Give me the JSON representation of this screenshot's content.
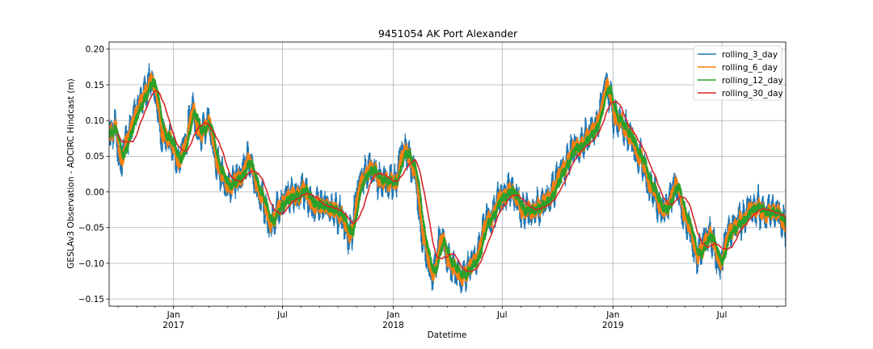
{
  "chart_data": {
    "type": "line",
    "title": "9451054 AK Port Alexander",
    "xlabel": "Datetime",
    "ylabel": "GESLAv3 Observation - ADCIRC Hindcast (m)",
    "xlim": [
      "2016-09-16",
      "2019-10-15"
    ],
    "ylim": [
      -0.16,
      0.21
    ],
    "yticks": [
      -0.15,
      -0.1,
      -0.05,
      0.0,
      0.05,
      0.1,
      0.15,
      0.2
    ],
    "ytick_labels": [
      "−0.15",
      "−0.10",
      "−0.05",
      "0.00",
      "0.05",
      "0.10",
      "0.15",
      "0.20"
    ],
    "xticks": [
      {
        "date": "2017-01-01",
        "label": "Jan",
        "sublabel": "2017"
      },
      {
        "date": "2017-07-01",
        "label": "Jul",
        "sublabel": ""
      },
      {
        "date": "2018-01-01",
        "label": "Jan",
        "sublabel": "2018"
      },
      {
        "date": "2018-07-01",
        "label": "Jul",
        "sublabel": ""
      },
      {
        "date": "2019-01-01",
        "label": "Jan",
        "sublabel": "2019"
      },
      {
        "date": "2019-07-01",
        "label": "Jul",
        "sublabel": ""
      }
    ],
    "grid": true,
    "legend_position": "top-right",
    "series": [
      {
        "name": "rolling_3_day",
        "color": "#1f77b4",
        "noise": 0.013,
        "window": 3
      },
      {
        "name": "rolling_6_day",
        "color": "#ff7f0e",
        "noise": 0.009,
        "window": 6
      },
      {
        "name": "rolling_12_day",
        "color": "#2ca02c",
        "noise": 0.005,
        "window": 12
      },
      {
        "name": "rolling_30_day",
        "color": "#d62728",
        "noise": 0.0,
        "window": 30
      }
    ],
    "base_curve": [
      {
        "x": "2016-09-16",
        "y": 0.08
      },
      {
        "x": "2016-09-25",
        "y": 0.09
      },
      {
        "x": "2016-10-03",
        "y": 0.04
      },
      {
        "x": "2016-10-12",
        "y": 0.07
      },
      {
        "x": "2016-10-25",
        "y": 0.1
      },
      {
        "x": "2016-11-08",
        "y": 0.13
      },
      {
        "x": "2016-11-22",
        "y": 0.16
      },
      {
        "x": "2016-12-01",
        "y": 0.14
      },
      {
        "x": "2016-12-10",
        "y": 0.08
      },
      {
        "x": "2016-12-25",
        "y": 0.07
      },
      {
        "x": "2017-01-08",
        "y": 0.04
      },
      {
        "x": "2017-01-20",
        "y": 0.07
      },
      {
        "x": "2017-01-30",
        "y": 0.12
      },
      {
        "x": "2017-02-12",
        "y": 0.08
      },
      {
        "x": "2017-02-25",
        "y": 0.1
      },
      {
        "x": "2017-03-15",
        "y": 0.03
      },
      {
        "x": "2017-04-01",
        "y": 0.01
      },
      {
        "x": "2017-04-20",
        "y": 0.02
      },
      {
        "x": "2017-05-05",
        "y": 0.04
      },
      {
        "x": "2017-05-20",
        "y": 0.0
      },
      {
        "x": "2017-06-10",
        "y": -0.04
      },
      {
        "x": "2017-06-25",
        "y": -0.02
      },
      {
        "x": "2017-07-10",
        "y": -0.01
      },
      {
        "x": "2017-08-01",
        "y": 0.0
      },
      {
        "x": "2017-08-25",
        "y": -0.02
      },
      {
        "x": "2017-09-15",
        "y": -0.02
      },
      {
        "x": "2017-10-05",
        "y": -0.03
      },
      {
        "x": "2017-10-20",
        "y": -0.06
      },
      {
        "x": "2017-11-05",
        "y": 0.01
      },
      {
        "x": "2017-11-20",
        "y": 0.03
      },
      {
        "x": "2017-12-10",
        "y": 0.02
      },
      {
        "x": "2018-01-01",
        "y": 0.01
      },
      {
        "x": "2018-01-18",
        "y": 0.06
      },
      {
        "x": "2018-02-01",
        "y": 0.04
      },
      {
        "x": "2018-02-20",
        "y": -0.07
      },
      {
        "x": "2018-03-05",
        "y": -0.12
      },
      {
        "x": "2018-03-20",
        "y": -0.07
      },
      {
        "x": "2018-04-05",
        "y": -0.1
      },
      {
        "x": "2018-04-25",
        "y": -0.12
      },
      {
        "x": "2018-05-15",
        "y": -0.1
      },
      {
        "x": "2018-06-05",
        "y": -0.04
      },
      {
        "x": "2018-06-25",
        "y": -0.01
      },
      {
        "x": "2018-07-15",
        "y": 0.0
      },
      {
        "x": "2018-08-05",
        "y": -0.03
      },
      {
        "x": "2018-08-25",
        "y": -0.02
      },
      {
        "x": "2018-09-15",
        "y": -0.01
      },
      {
        "x": "2018-10-05",
        "y": 0.03
      },
      {
        "x": "2018-10-25",
        "y": 0.06
      },
      {
        "x": "2018-11-10",
        "y": 0.07
      },
      {
        "x": "2018-12-01",
        "y": 0.09
      },
      {
        "x": "2018-12-20",
        "y": 0.15
      },
      {
        "x": "2019-01-05",
        "y": 0.1
      },
      {
        "x": "2019-01-25",
        "y": 0.08
      },
      {
        "x": "2019-02-15",
        "y": 0.05
      },
      {
        "x": "2019-03-05",
        "y": 0.0
      },
      {
        "x": "2019-03-25",
        "y": -0.03
      },
      {
        "x": "2019-04-15",
        "y": 0.01
      },
      {
        "x": "2019-05-01",
        "y": -0.04
      },
      {
        "x": "2019-05-20",
        "y": -0.09
      },
      {
        "x": "2019-06-10",
        "y": -0.06
      },
      {
        "x": "2019-06-25",
        "y": -0.1
      },
      {
        "x": "2019-07-10",
        "y": -0.06
      },
      {
        "x": "2019-07-30",
        "y": -0.04
      },
      {
        "x": "2019-08-20",
        "y": -0.02
      },
      {
        "x": "2019-09-10",
        "y": -0.03
      },
      {
        "x": "2019-09-28",
        "y": -0.03
      },
      {
        "x": "2019-10-15",
        "y": -0.05
      }
    ]
  }
}
